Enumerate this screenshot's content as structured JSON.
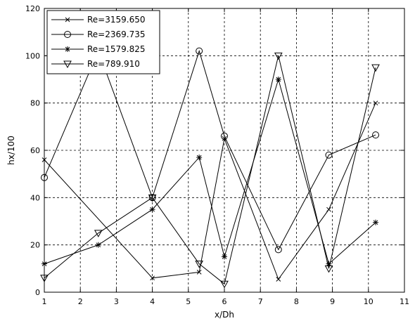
{
  "chart_data": {
    "type": "line",
    "title": "",
    "xlabel": "x/Dh",
    "ylabel": "hx/100",
    "xlim": [
      1,
      11
    ],
    "ylim": [
      0,
      120
    ],
    "xticks": [
      1,
      2,
      3,
      4,
      5,
      6,
      7,
      8,
      9,
      10,
      11
    ],
    "yticks": [
      0,
      20,
      40,
      60,
      80,
      100,
      120
    ],
    "xtick_labels": [
      "1",
      "2",
      "3",
      "4",
      "5",
      "6",
      "7",
      "8",
      "9",
      "10",
      "11"
    ],
    "ytick_labels": [
      "0",
      "20",
      "40",
      "60",
      "80",
      "100",
      "120"
    ],
    "grid": true,
    "legend_position": "top-left",
    "series": [
      {
        "name": "Re=3159.650",
        "marker": "x",
        "x": [
          1,
          4,
          5.3,
          6,
          7.5,
          8.9,
          10.2
        ],
        "y": [
          56,
          6,
          8.5,
          65,
          5.5,
          35,
          80
        ]
      },
      {
        "name": "Re=2369.735",
        "marker": "circle",
        "x": [
          1,
          2.5,
          4,
          5.3,
          6,
          7.5,
          8.9,
          10.2
        ],
        "y": [
          48.5,
          102,
          40,
          102,
          66,
          18,
          58,
          66.5
        ]
      },
      {
        "name": "Re=1579.825",
        "marker": "star",
        "x": [
          1,
          2.5,
          4,
          5.3,
          6,
          7.5,
          8.9,
          10.2
        ],
        "y": [
          12,
          20,
          35,
          57,
          15,
          90,
          12,
          29.5
        ]
      },
      {
        "name": "Re=789.910",
        "marker": "triangle-down",
        "x": [
          1,
          2.5,
          4,
          5.3,
          6,
          7.5,
          8.9,
          10.2
        ],
        "y": [
          6,
          25,
          40,
          12,
          3.5,
          100,
          10,
          95
        ]
      }
    ]
  }
}
